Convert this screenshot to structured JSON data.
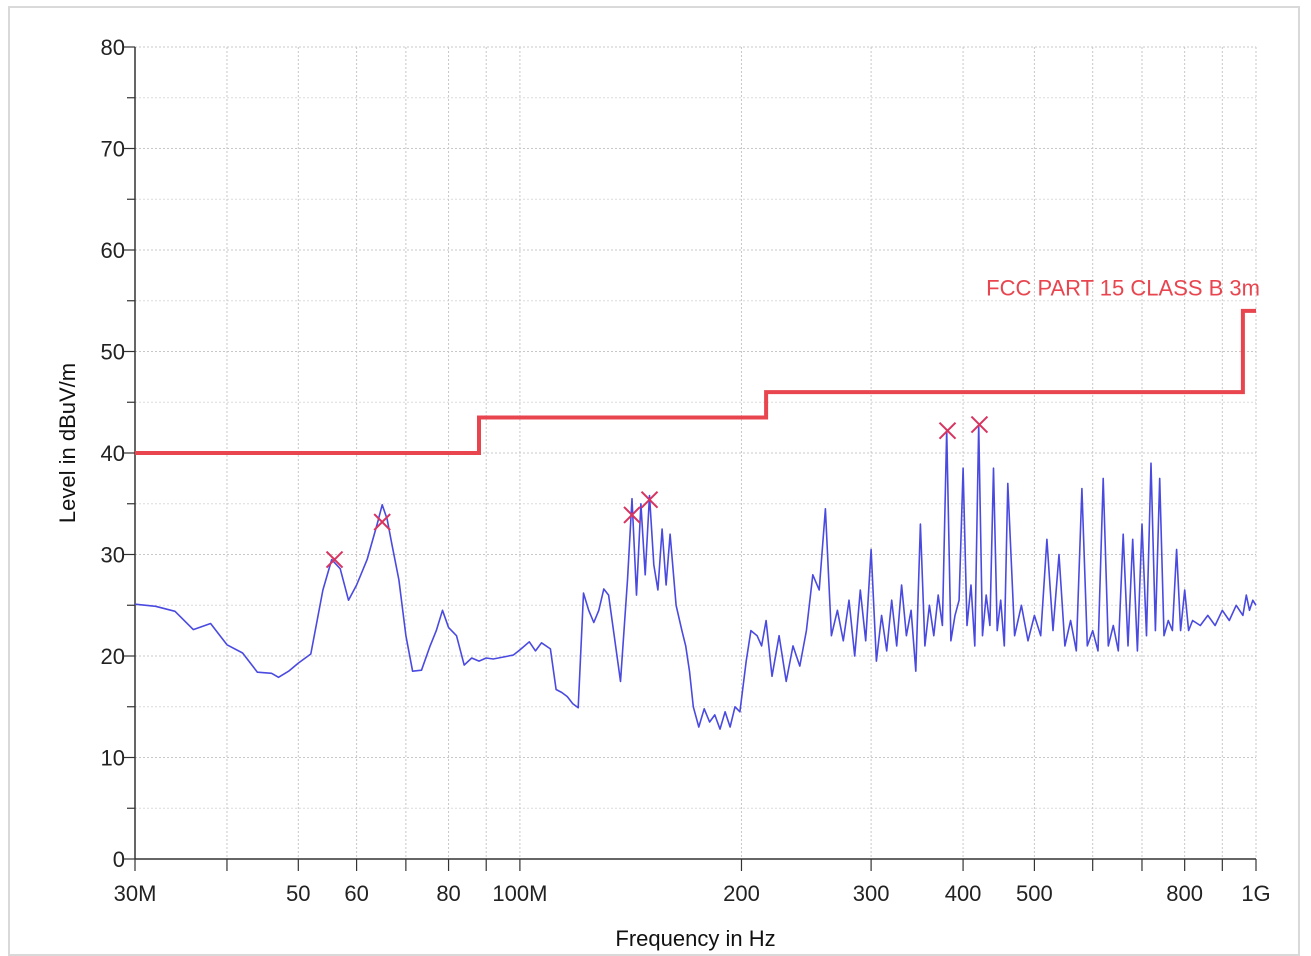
{
  "chart_data": {
    "type": "line",
    "title": "",
    "xlabel": "Frequency in Hz",
    "ylabel": "Level in dBuV/m",
    "x_scale": "log",
    "xlim": [
      30000000,
      1000000000
    ],
    "ylim": [
      0,
      80
    ],
    "grid": true,
    "y_ticks": [
      0,
      10,
      20,
      30,
      40,
      50,
      60,
      70,
      80
    ],
    "x_ticks": [
      {
        "value": 30000000,
        "label": "30M"
      },
      {
        "value": 50000000,
        "label": "50"
      },
      {
        "value": 60000000,
        "label": "60"
      },
      {
        "value": 80000000,
        "label": "80"
      },
      {
        "value": 100000000,
        "label": "100M"
      },
      {
        "value": 200000000,
        "label": "200"
      },
      {
        "value": 300000000,
        "label": "300"
      },
      {
        "value": 400000000,
        "label": "400"
      },
      {
        "value": 500000000,
        "label": "500"
      },
      {
        "value": 800000000,
        "label": "800"
      },
      {
        "value": 1000000000,
        "label": "1G"
      }
    ],
    "limit_line": {
      "label": "FCC PART 15 CLASS B 3m",
      "color": "#e8454f",
      "points": [
        [
          30000000,
          40
        ],
        [
          88000000,
          40
        ],
        [
          88000000,
          43.5
        ],
        [
          216000000,
          43.5
        ],
        [
          216000000,
          46
        ],
        [
          960000000,
          46
        ],
        [
          960000000,
          54
        ],
        [
          1000000000,
          54
        ]
      ]
    },
    "trace": {
      "color": "#4a4ae0",
      "points": [
        [
          30000000,
          25.1
        ],
        [
          32000000,
          24.9
        ],
        [
          34000000,
          24.4
        ],
        [
          36000000,
          22.6
        ],
        [
          38000000,
          23.2
        ],
        [
          40000000,
          21.1
        ],
        [
          42000000,
          20.3
        ],
        [
          44000000,
          18.4
        ],
        [
          46000000,
          18.3
        ],
        [
          47000000,
          17.9
        ],
        [
          48500000,
          18.5
        ],
        [
          50000000,
          19.3
        ],
        [
          52000000,
          20.2
        ],
        [
          54000000,
          26.5
        ],
        [
          55500000,
          29.5
        ],
        [
          57000000,
          28.6
        ],
        [
          58500000,
          25.5
        ],
        [
          60000000,
          27.0
        ],
        [
          62000000,
          29.5
        ],
        [
          64000000,
          33.0
        ],
        [
          65000000,
          34.9
        ],
        [
          66000000,
          33.5
        ],
        [
          67000000,
          31.0
        ],
        [
          68500000,
          27.5
        ],
        [
          70000000,
          22.0
        ],
        [
          71500000,
          18.5
        ],
        [
          73500000,
          18.6
        ],
        [
          75500000,
          21.0
        ],
        [
          77000000,
          22.5
        ],
        [
          78500000,
          24.5
        ],
        [
          80000000,
          22.8
        ],
        [
          82000000,
          22.0
        ],
        [
          84000000,
          19.1
        ],
        [
          86000000,
          19.8
        ],
        [
          88000000,
          19.5
        ],
        [
          90000000,
          19.8
        ],
        [
          92000000,
          19.7
        ],
        [
          95000000,
          19.9
        ],
        [
          98000000,
          20.1
        ],
        [
          100000000,
          20.6
        ],
        [
          103000000,
          21.4
        ],
        [
          105000000,
          20.5
        ],
        [
          107000000,
          21.3
        ],
        [
          110000000,
          20.7
        ],
        [
          112000000,
          16.7
        ],
        [
          114000000,
          16.4
        ],
        [
          116000000,
          16.0
        ],
        [
          118000000,
          15.3
        ],
        [
          120000000,
          14.9
        ],
        [
          122000000,
          26.2
        ],
        [
          124000000,
          24.5
        ],
        [
          126000000,
          23.3
        ],
        [
          128000000,
          24.5
        ],
        [
          130000000,
          26.6
        ],
        [
          132000000,
          26.0
        ],
        [
          134000000,
          22.5
        ],
        [
          137000000,
          17.5
        ],
        [
          140000000,
          27.5
        ],
        [
          142000000,
          35.5
        ],
        [
          144000000,
          26.0
        ],
        [
          146000000,
          35.0
        ],
        [
          148000000,
          28.0
        ],
        [
          150000000,
          35.8
        ],
        [
          152000000,
          29.0
        ],
        [
          154000000,
          26.5
        ],
        [
          156000000,
          32.5
        ],
        [
          158000000,
          27.0
        ],
        [
          160000000,
          32.0
        ],
        [
          163000000,
          25.0
        ],
        [
          166000000,
          22.5
        ],
        [
          168000000,
          21.0
        ],
        [
          170000000,
          18.5
        ],
        [
          172000000,
          15.0
        ],
        [
          175000000,
          13.0
        ],
        [
          178000000,
          14.8
        ],
        [
          181000000,
          13.5
        ],
        [
          184000000,
          14.2
        ],
        [
          187000000,
          12.8
        ],
        [
          190000000,
          14.5
        ],
        [
          193000000,
          13.0
        ],
        [
          196000000,
          15.0
        ],
        [
          199000000,
          14.5
        ],
        [
          203000000,
          19.5
        ],
        [
          206000000,
          22.5
        ],
        [
          210000000,
          22.0
        ],
        [
          213000000,
          21.0
        ],
        [
          216000000,
          23.5
        ],
        [
          220000000,
          18.0
        ],
        [
          225000000,
          22.0
        ],
        [
          230000000,
          17.5
        ],
        [
          235000000,
          21.0
        ],
        [
          240000000,
          19.0
        ],
        [
          245000000,
          22.5
        ],
        [
          250000000,
          28.0
        ],
        [
          255000000,
          26.5
        ],
        [
          260000000,
          34.5
        ],
        [
          265000000,
          22.0
        ],
        [
          270000000,
          24.5
        ],
        [
          275000000,
          21.5
        ],
        [
          280000000,
          25.5
        ],
        [
          285000000,
          20.0
        ],
        [
          290000000,
          26.5
        ],
        [
          295000000,
          21.5
        ],
        [
          300000000,
          30.5
        ],
        [
          305000000,
          19.5
        ],
        [
          310000000,
          24.0
        ],
        [
          315000000,
          20.5
        ],
        [
          320000000,
          25.5
        ],
        [
          325000000,
          21.0
        ],
        [
          330000000,
          27.0
        ],
        [
          335000000,
          22.0
        ],
        [
          340000000,
          24.5
        ],
        [
          345000000,
          18.5
        ],
        [
          350000000,
          33.0
        ],
        [
          355000000,
          21.0
        ],
        [
          360000000,
          25.0
        ],
        [
          365000000,
          22.0
        ],
        [
          370000000,
          26.0
        ],
        [
          375000000,
          23.0
        ],
        [
          380000000,
          42.3
        ],
        [
          385000000,
          21.5
        ],
        [
          390000000,
          24.0
        ],
        [
          395000000,
          25.5
        ],
        [
          400000000,
          38.5
        ],
        [
          405000000,
          23.0
        ],
        [
          410000000,
          27.0
        ],
        [
          415000000,
          21.0
        ],
        [
          420000000,
          42.8
        ],
        [
          425000000,
          22.0
        ],
        [
          430000000,
          26.0
        ],
        [
          435000000,
          23.0
        ],
        [
          440000000,
          38.5
        ],
        [
          445000000,
          22.5
        ],
        [
          450000000,
          25.5
        ],
        [
          455000000,
          21.0
        ],
        [
          460000000,
          37.0
        ],
        [
          470000000,
          22.0
        ],
        [
          480000000,
          25.0
        ],
        [
          490000000,
          21.5
        ],
        [
          500000000,
          24.0
        ],
        [
          510000000,
          22.0
        ],
        [
          520000000,
          31.5
        ],
        [
          530000000,
          22.5
        ],
        [
          540000000,
          30.0
        ],
        [
          550000000,
          21.0
        ],
        [
          560000000,
          23.5
        ],
        [
          570000000,
          20.5
        ],
        [
          580000000,
          36.5
        ],
        [
          590000000,
          21.0
        ],
        [
          600000000,
          22.5
        ],
        [
          610000000,
          20.5
        ],
        [
          620000000,
          37.5
        ],
        [
          630000000,
          21.0
        ],
        [
          640000000,
          23.0
        ],
        [
          650000000,
          20.5
        ],
        [
          660000000,
          32.0
        ],
        [
          670000000,
          21.0
        ],
        [
          680000000,
          31.5
        ],
        [
          690000000,
          20.5
        ],
        [
          700000000,
          33.0
        ],
        [
          710000000,
          22.0
        ],
        [
          720000000,
          39.0
        ],
        [
          730000000,
          22.5
        ],
        [
          740000000,
          37.5
        ],
        [
          750000000,
          22.0
        ],
        [
          760000000,
          23.5
        ],
        [
          770000000,
          22.5
        ],
        [
          780000000,
          30.5
        ],
        [
          790000000,
          22.5
        ],
        [
          800000000,
          26.5
        ],
        [
          810000000,
          22.5
        ],
        [
          820000000,
          23.5
        ],
        [
          840000000,
          23.0
        ],
        [
          860000000,
          24.0
        ],
        [
          880000000,
          23.0
        ],
        [
          900000000,
          24.5
        ],
        [
          920000000,
          23.5
        ],
        [
          940000000,
          25.0
        ],
        [
          960000000,
          24.0
        ],
        [
          970000000,
          26.0
        ],
        [
          980000000,
          24.5
        ],
        [
          990000000,
          25.5
        ],
        [
          1000000000,
          25.0
        ]
      ]
    },
    "peak_markers": {
      "color": "#d8345f",
      "points": [
        [
          56000000,
          29.5
        ],
        [
          65000000,
          33.2
        ],
        [
          142000000,
          33.9
        ],
        [
          150000000,
          35.4
        ],
        [
          381000000,
          42.2
        ],
        [
          421000000,
          42.8
        ]
      ]
    }
  }
}
